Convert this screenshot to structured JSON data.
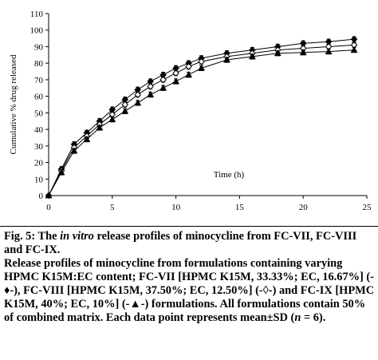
{
  "chart_data": {
    "type": "line",
    "xlabel": "Time (h)",
    "ylabel": "Cumulative % drug released",
    "xlim": [
      0,
      25
    ],
    "ylim": [
      0,
      110
    ],
    "xticks": [
      0,
      5,
      10,
      15,
      20,
      25
    ],
    "yticks": [
      0,
      10,
      20,
      30,
      40,
      50,
      60,
      70,
      80,
      90,
      100,
      110
    ],
    "grid": false,
    "legend": "none",
    "x": [
      0,
      1,
      2,
      3,
      4,
      5,
      6,
      7,
      8,
      9,
      10,
      11,
      12,
      14,
      16,
      18,
      20,
      22,
      24
    ],
    "series": [
      {
        "marker": "filled-diamond",
        "values": [
          0,
          16,
          31,
          38,
          45,
          52,
          58,
          64,
          69,
          73,
          77,
          80,
          83,
          86,
          88,
          90,
          92,
          93,
          94.5
        ]
      },
      {
        "marker": "open-diamond",
        "values": [
          0,
          15,
          29,
          36,
          43,
          49,
          55,
          61,
          66,
          70,
          74,
          78,
          81,
          84,
          86,
          88,
          89,
          90,
          91
        ]
      },
      {
        "marker": "filled-triangle",
        "values": [
          0,
          14,
          27,
          34,
          41,
          46,
          51,
          56,
          61,
          65,
          69,
          73,
          77,
          82,
          84,
          86,
          86.5,
          87,
          88
        ]
      }
    ],
    "error": 1.5
  },
  "caption": {
    "lead": "Fig. 5: The ",
    "lead_italic": "in vitro",
    "lead_rest": " release profiles of minocycline from FC-VII, FC-VIII and FC-IX.",
    "body_1": "Release profiles of minocycline from formulations containing varying HPMC K15M:EC content; FC-VII [HPMC K15M, 33.33%; EC, 16.67%] (-♦-), FC-VIII [HPMC K15M, 37.50%; EC, 12.50%] (-◊-) and FC-IX [HPMC K15M, 40%; EC, 10%] (-▲-) formulations. All formulations contain 50% of combined matrix. Each data point represents mean±SD (",
    "body_italic": "n",
    "body_2": " = 6)."
  },
  "colors": {
    "ink": "#000000",
    "background": "#ffffff"
  }
}
